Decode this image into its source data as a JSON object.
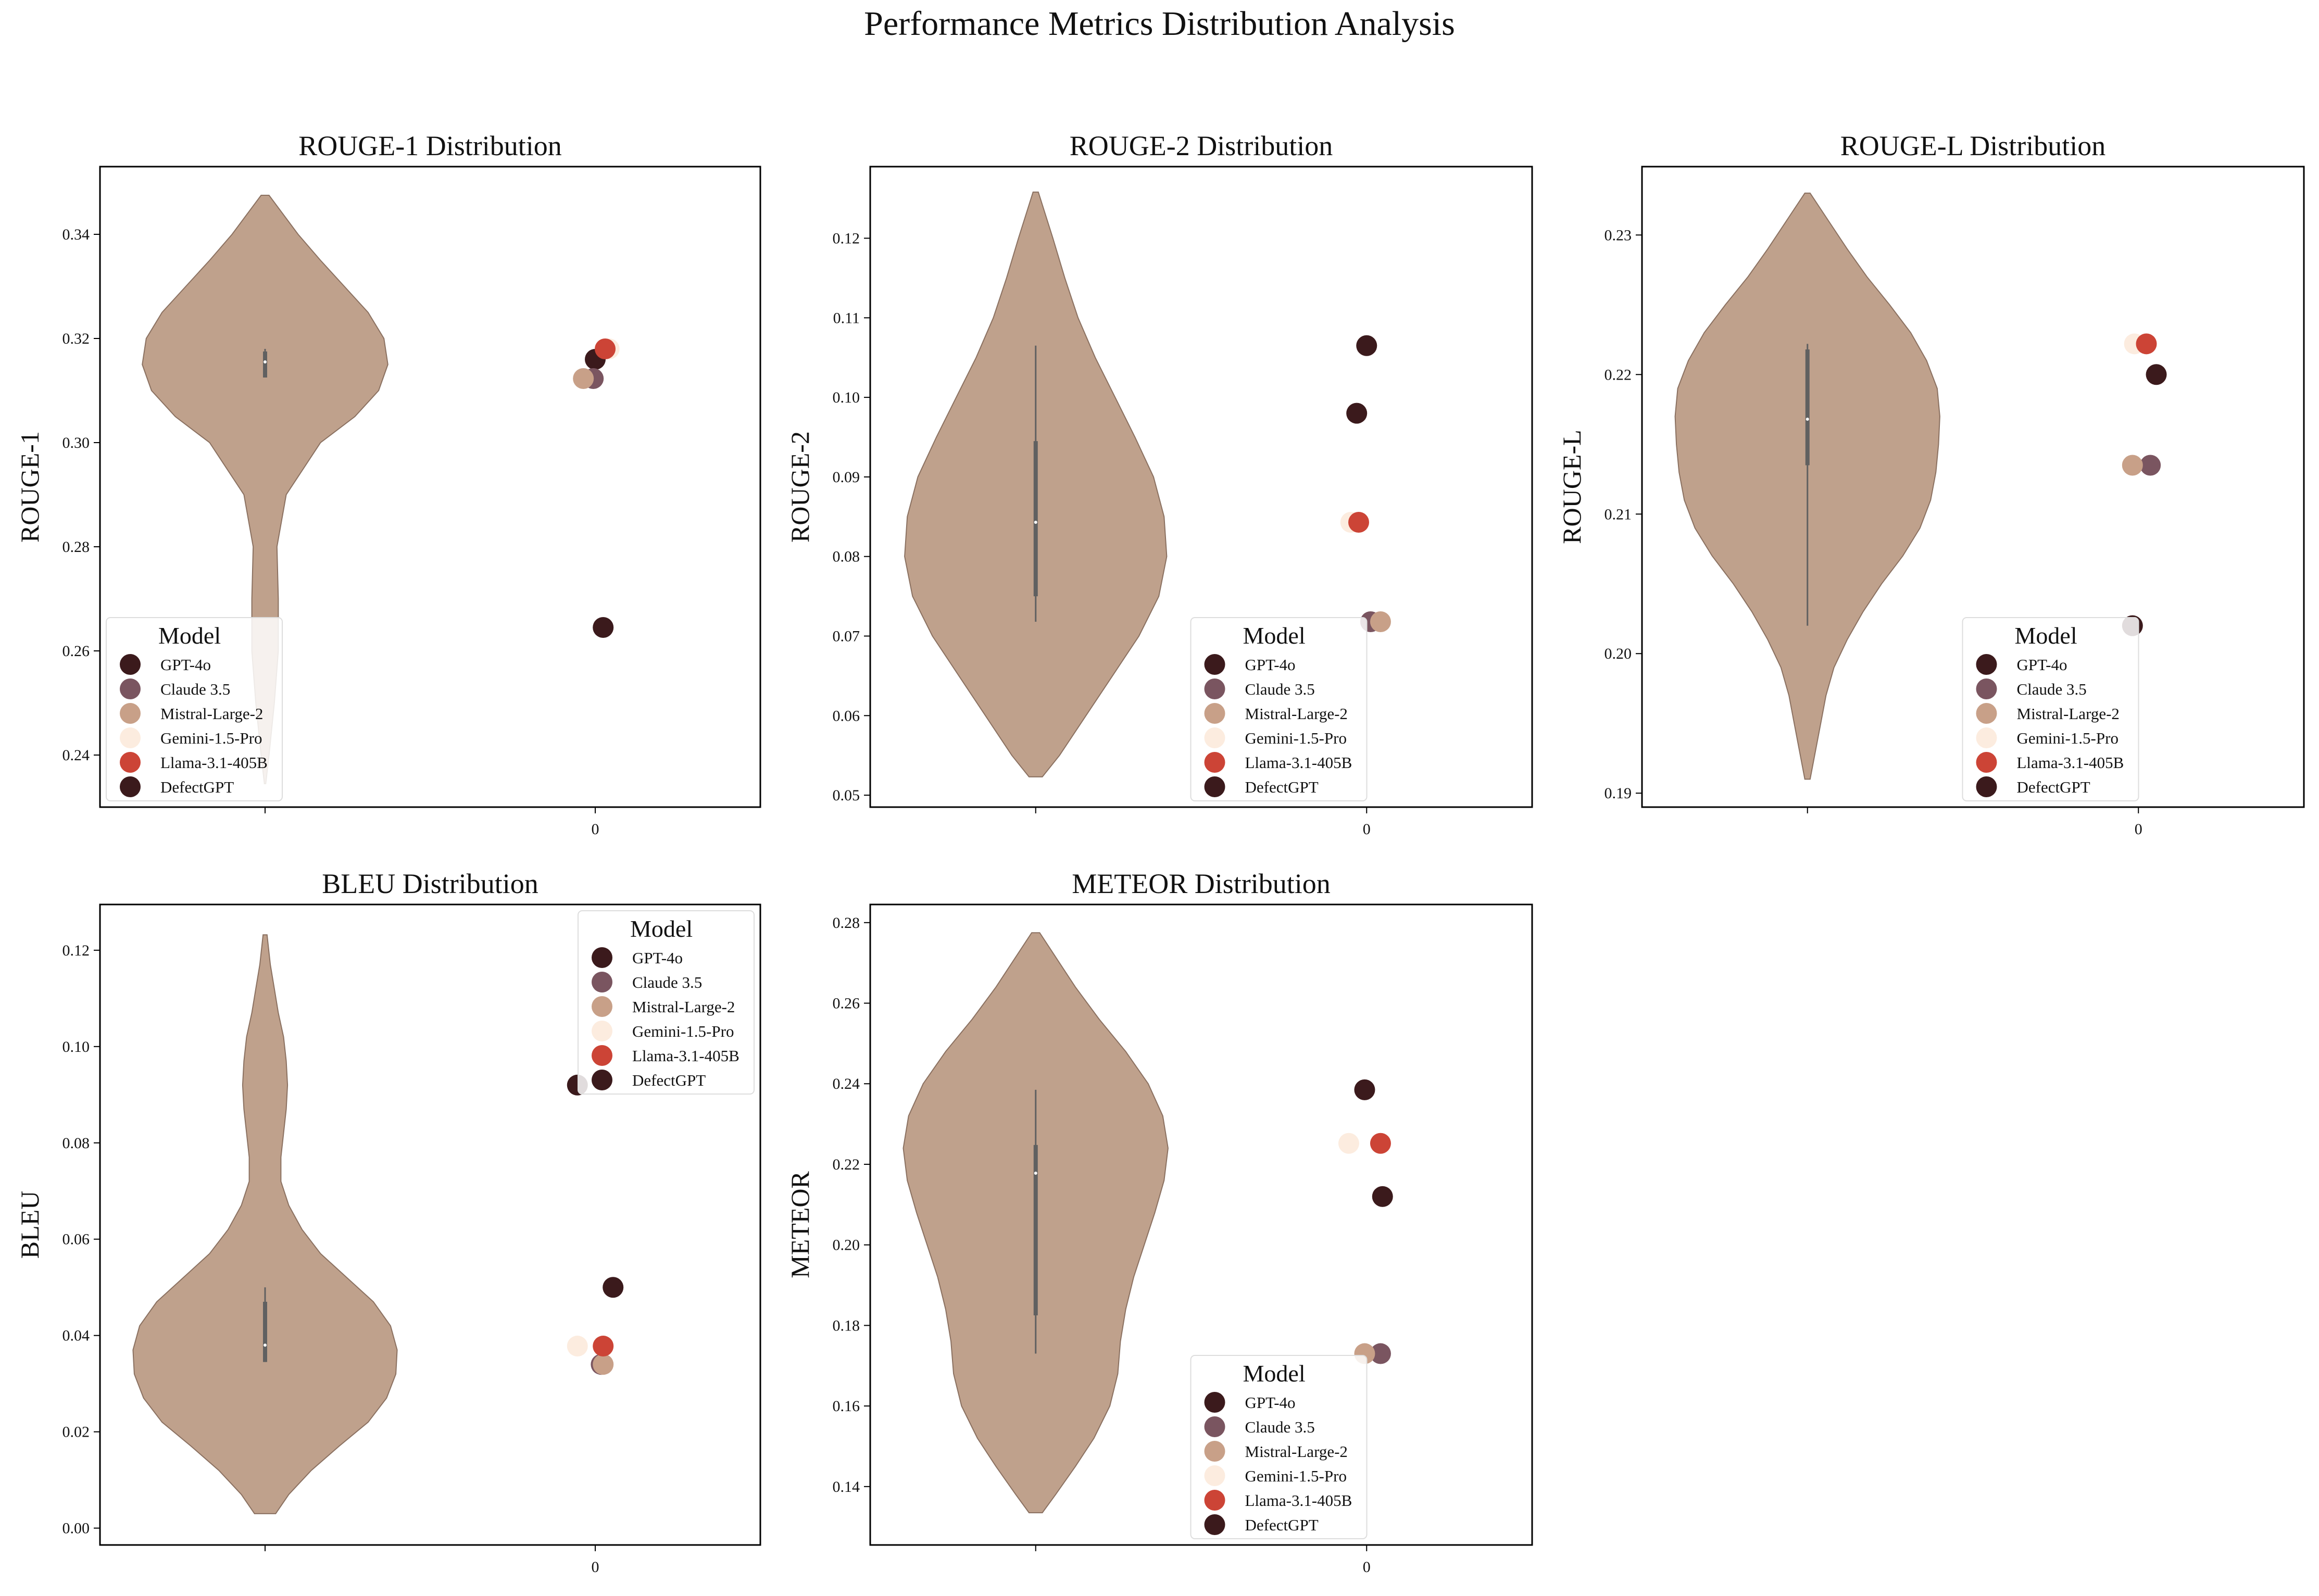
{
  "figure": {
    "title": "Performance Metrics Distribution Analysis"
  },
  "legend": {
    "title": "Model",
    "entries": [
      {
        "label": "GPT-4o",
        "color": "#3b1a1c"
      },
      {
        "label": "Claude 3.5",
        "color": "#7a5560"
      },
      {
        "label": "Mistral-Large-2",
        "color": "#c8a088"
      },
      {
        "label": "Gemini-1.5-Pro",
        "color": "#fcecdf"
      },
      {
        "label": "Llama-3.1-405B",
        "color": "#cc4436"
      },
      {
        "label": "DefectGPT",
        "color": "#3b1a1c"
      }
    ]
  },
  "style": {
    "violin_fill": "#bfa18c",
    "violin_edge": "#8a7060",
    "box_color": "#606060"
  },
  "chart_data": [
    {
      "type": "violin",
      "title": "ROUGE-1 Distribution",
      "ylabel": "ROUGE-1",
      "xticks": [
        "",
        "0"
      ],
      "ylim": [
        0.23,
        0.353
      ],
      "yticks": [
        0.24,
        0.26,
        0.28,
        0.3,
        0.32,
        0.34
      ],
      "tick_format": 2,
      "legend_position": "lower-left",
      "violin": {
        "ys": [
          0.2345,
          0.24,
          0.25,
          0.26,
          0.27,
          0.28,
          0.29,
          0.3,
          0.305,
          0.31,
          0.315,
          0.32,
          0.325,
          0.33,
          0.335,
          0.34,
          0.3475
        ],
        "ws": [
          0.005,
          0.03,
          0.07,
          0.1,
          0.1,
          0.09,
          0.16,
          0.42,
          0.68,
          0.86,
          0.93,
          0.9,
          0.78,
          0.6,
          0.42,
          0.25,
          0.03
        ],
        "q1": 0.3125,
        "q3": 0.3175,
        "median": 0.3155,
        "wlo": 0.3125,
        "whi": 0.318
      },
      "points": [
        {
          "model": "GPT-4o",
          "value": 0.316,
          "jitter": 0.0
        },
        {
          "model": "Claude 3.5",
          "value": 0.3123,
          "jitter": -0.01
        },
        {
          "model": "Mistral-Large-2",
          "value": 0.3123,
          "jitter": -0.06
        },
        {
          "model": "Gemini-1.5-Pro",
          "value": 0.318,
          "jitter": 0.07
        },
        {
          "model": "Llama-3.1-405B",
          "value": 0.318,
          "jitter": 0.05
        },
        {
          "model": "DefectGPT",
          "value": 0.2645,
          "jitter": 0.04
        }
      ]
    },
    {
      "type": "violin",
      "title": "ROUGE-2 Distribution",
      "ylabel": "ROUGE-2",
      "xticks": [
        "",
        "0"
      ],
      "ylim": [
        0.0485,
        0.129
      ],
      "yticks": [
        0.05,
        0.06,
        0.07,
        0.08,
        0.09,
        0.1,
        0.11,
        0.12
      ],
      "tick_format": 2,
      "legend_position": "lower-right",
      "violin": {
        "ys": [
          0.0523,
          0.055,
          0.06,
          0.065,
          0.07,
          0.075,
          0.08,
          0.085,
          0.09,
          0.095,
          0.1,
          0.105,
          0.11,
          0.115,
          0.12,
          0.1258
        ],
        "ws": [
          0.05,
          0.18,
          0.38,
          0.58,
          0.78,
          0.93,
          0.99,
          0.97,
          0.89,
          0.75,
          0.6,
          0.45,
          0.32,
          0.22,
          0.13,
          0.02
        ],
        "q1": 0.075,
        "q3": 0.0945,
        "median": 0.0843,
        "wlo": 0.0718,
        "whi": 0.1065
      },
      "points": [
        {
          "model": "GPT-4o",
          "value": 0.098,
          "jitter": -0.05
        },
        {
          "model": "Claude 3.5",
          "value": 0.0718,
          "jitter": 0.02
        },
        {
          "model": "Mistral-Large-2",
          "value": 0.0718,
          "jitter": 0.07
        },
        {
          "model": "Gemini-1.5-Pro",
          "value": 0.0843,
          "jitter": -0.08
        },
        {
          "model": "Llama-3.1-405B",
          "value": 0.0843,
          "jitter": -0.04
        },
        {
          "model": "DefectGPT",
          "value": 0.1065,
          "jitter": 0.0
        }
      ]
    },
    {
      "type": "violin",
      "title": "ROUGE-L Distribution",
      "ylabel": "ROUGE-L",
      "xticks": [
        "",
        "0"
      ],
      "ylim": [
        0.189,
        0.2349
      ],
      "yticks": [
        0.19,
        0.2,
        0.21,
        0.22,
        0.23
      ],
      "tick_format": 2,
      "legend_position": "lower-right",
      "violin": {
        "ys": [
          0.191,
          0.193,
          0.195,
          0.197,
          0.199,
          0.201,
          0.203,
          0.205,
          0.207,
          0.209,
          0.211,
          0.213,
          0.215,
          0.217,
          0.219,
          0.221,
          0.223,
          0.225,
          0.227,
          0.229,
          0.231,
          0.233
        ],
        "ws": [
          0.02,
          0.06,
          0.1,
          0.14,
          0.2,
          0.3,
          0.42,
          0.56,
          0.72,
          0.85,
          0.93,
          0.97,
          0.99,
          1.0,
          0.98,
          0.9,
          0.78,
          0.62,
          0.45,
          0.3,
          0.16,
          0.02
        ],
        "q1": 0.2135,
        "q3": 0.2218,
        "median": 0.2168,
        "wlo": 0.202,
        "whi": 0.2222
      },
      "points": [
        {
          "model": "GPT-4o",
          "value": 0.202,
          "jitter": -0.03
        },
        {
          "model": "Claude 3.5",
          "value": 0.2135,
          "jitter": 0.06
        },
        {
          "model": "Mistral-Large-2",
          "value": 0.2135,
          "jitter": -0.03
        },
        {
          "model": "Gemini-1.5-Pro",
          "value": 0.2222,
          "jitter": -0.02
        },
        {
          "model": "Llama-3.1-405B",
          "value": 0.2222,
          "jitter": 0.04
        },
        {
          "model": "DefectGPT",
          "value": 0.22,
          "jitter": 0.09
        }
      ]
    },
    {
      "type": "violin",
      "title": "BLEU Distribution",
      "ylabel": "BLEU",
      "xticks": [
        "",
        "0"
      ],
      "ylim": [
        -0.0035,
        0.1295
      ],
      "yticks": [
        0.0,
        0.02,
        0.04,
        0.06,
        0.08,
        0.1,
        0.12
      ],
      "tick_format": 2,
      "legend_position": "upper-right",
      "violin": {
        "ys": [
          0.003,
          0.007,
          0.012,
          0.017,
          0.022,
          0.027,
          0.032,
          0.037,
          0.042,
          0.047,
          0.052,
          0.057,
          0.062,
          0.067,
          0.072,
          0.077,
          0.082,
          0.087,
          0.092,
          0.097,
          0.102,
          0.107,
          0.112,
          0.117,
          0.1232
        ],
        "ws": [
          0.08,
          0.18,
          0.35,
          0.56,
          0.78,
          0.92,
          0.99,
          1.0,
          0.95,
          0.82,
          0.62,
          0.42,
          0.28,
          0.18,
          0.12,
          0.12,
          0.14,
          0.16,
          0.17,
          0.16,
          0.14,
          0.1,
          0.07,
          0.04,
          0.015
        ],
        "q1": 0.0345,
        "q3": 0.047,
        "median": 0.038,
        "wlo": 0.0345,
        "whi": 0.05
      },
      "points": [
        {
          "model": "GPT-4o",
          "value": 0.092,
          "jitter": -0.09
        },
        {
          "model": "Claude 3.5",
          "value": 0.034,
          "jitter": 0.03
        },
        {
          "model": "Mistral-Large-2",
          "value": 0.034,
          "jitter": 0.04
        },
        {
          "model": "Gemini-1.5-Pro",
          "value": 0.0378,
          "jitter": -0.09
        },
        {
          "model": "Llama-3.1-405B",
          "value": 0.0378,
          "jitter": 0.04
        },
        {
          "model": "DefectGPT",
          "value": 0.05,
          "jitter": 0.09
        }
      ]
    },
    {
      "type": "violin",
      "title": "METEOR Distribution",
      "ylabel": "METEOR",
      "xticks": [
        "",
        "0"
      ],
      "ylim": [
        0.1255,
        0.2845
      ],
      "yticks": [
        0.14,
        0.16,
        0.18,
        0.2,
        0.22,
        0.24,
        0.26,
        0.28
      ],
      "tick_format": 2,
      "legend_position": "lower-right",
      "violin": {
        "ys": [
          0.1335,
          0.138,
          0.145,
          0.152,
          0.16,
          0.168,
          0.176,
          0.184,
          0.192,
          0.2,
          0.208,
          0.216,
          0.224,
          0.232,
          0.24,
          0.248,
          0.256,
          0.264,
          0.272,
          0.2775
        ],
        "ws": [
          0.05,
          0.15,
          0.3,
          0.44,
          0.56,
          0.62,
          0.64,
          0.68,
          0.74,
          0.82,
          0.9,
          0.97,
          1.0,
          0.96,
          0.85,
          0.68,
          0.48,
          0.3,
          0.14,
          0.03
        ],
        "q1": 0.1825,
        "q3": 0.2248,
        "median": 0.2178,
        "wlo": 0.173,
        "whi": 0.2385
      },
      "points": [
        {
          "model": "GPT-4o",
          "value": 0.2385,
          "jitter": -0.01
        },
        {
          "model": "Claude 3.5",
          "value": 0.173,
          "jitter": 0.07
        },
        {
          "model": "Mistral-Large-2",
          "value": 0.173,
          "jitter": -0.01
        },
        {
          "model": "Gemini-1.5-Pro",
          "value": 0.2252,
          "jitter": -0.09
        },
        {
          "model": "Llama-3.1-405B",
          "value": 0.2252,
          "jitter": 0.07
        },
        {
          "model": "DefectGPT",
          "value": 0.212,
          "jitter": 0.08
        }
      ]
    }
  ]
}
